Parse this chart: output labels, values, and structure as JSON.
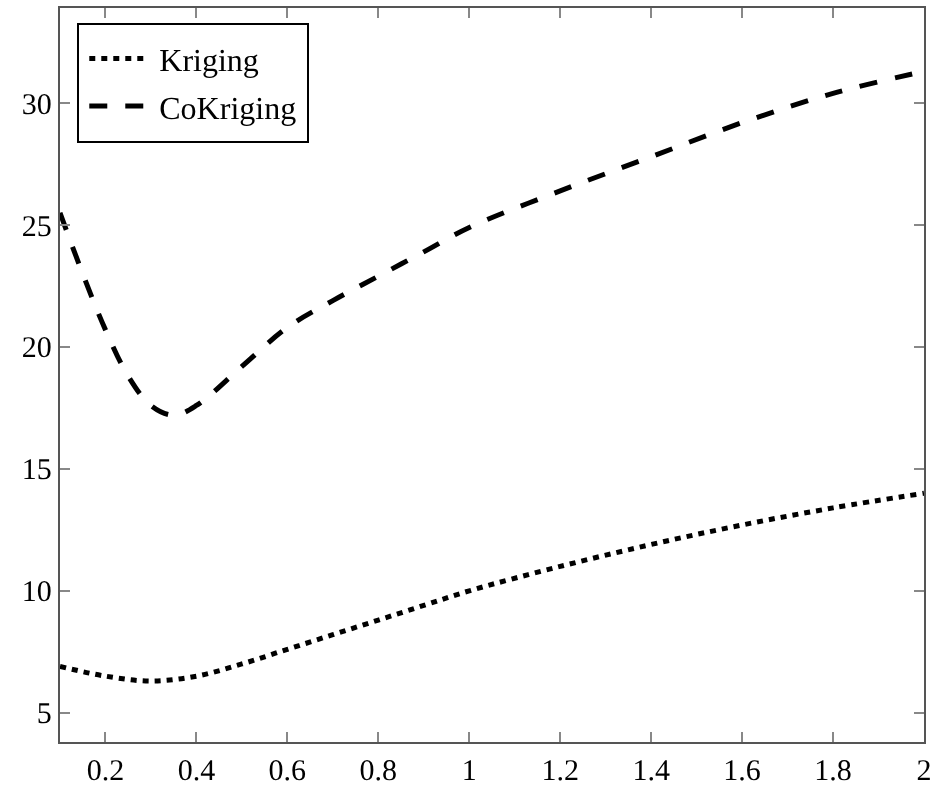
{
  "chart_data": {
    "type": "line",
    "xlim": [
      0.1,
      2
    ],
    "ylim": [
      3.8,
      33.9
    ],
    "xticks": [
      0.2,
      0.4,
      0.6,
      0.8,
      1,
      1.2,
      1.4,
      1.6,
      1.8,
      2
    ],
    "yticks": [
      5,
      10,
      15,
      20,
      25,
      30
    ],
    "legend": "top left",
    "marker": "none",
    "series": [
      {
        "name": "Kriging",
        "color": "#000000",
        "line_style": "dotted",
        "x": [
          0.1,
          0.2,
          0.3,
          0.4,
          0.5,
          0.6,
          0.7,
          0.8,
          0.9,
          1.0,
          1.2,
          1.4,
          1.6,
          1.8,
          2.0
        ],
        "values": [
          6.9,
          6.5,
          6.3,
          6.5,
          7.0,
          7.6,
          8.2,
          8.8,
          9.4,
          10.0,
          11.0,
          11.9,
          12.7,
          13.4,
          14.0
        ]
      },
      {
        "name": "CoKriging",
        "color": "#000000",
        "line_style": "dashed",
        "x": [
          0.1,
          0.15,
          0.2,
          0.25,
          0.3,
          0.35,
          0.4,
          0.5,
          0.6,
          0.7,
          0.8,
          0.9,
          1.0,
          1.2,
          1.4,
          1.6,
          1.8,
          2.0
        ],
        "values": [
          25.5,
          23.0,
          20.7,
          18.8,
          17.6,
          17.2,
          17.6,
          19.2,
          20.8,
          21.9,
          22.9,
          23.9,
          24.9,
          26.4,
          27.8,
          29.2,
          30.4,
          31.3
        ]
      }
    ]
  }
}
